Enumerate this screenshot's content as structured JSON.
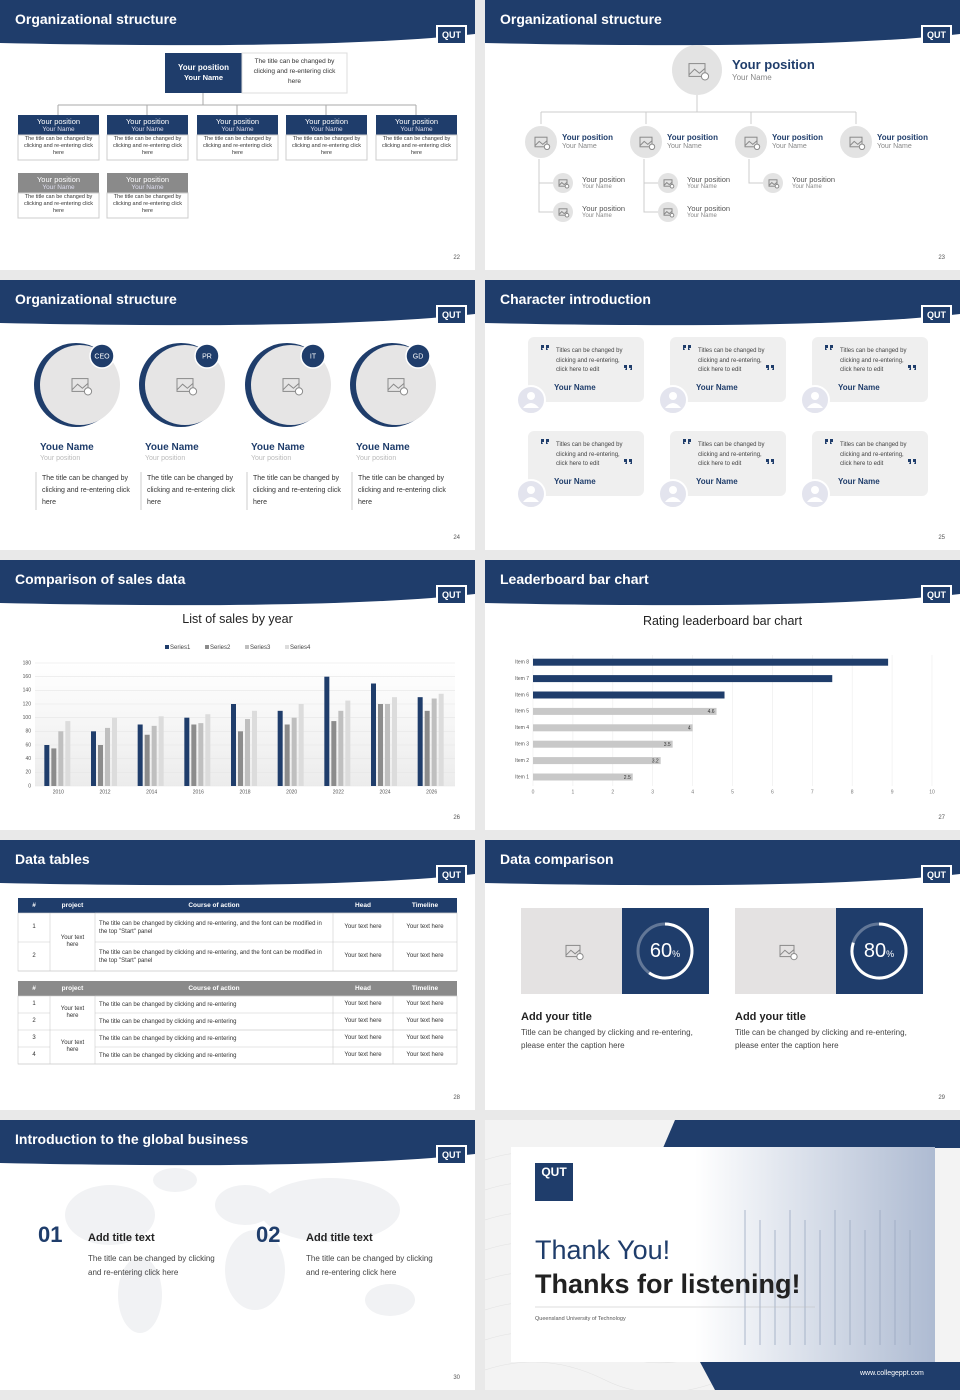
{
  "slides": [
    {
      "title": "Organizational structure",
      "logo": "QUT",
      "page": 22,
      "top": {
        "position": "Your position",
        "name": "Your Name",
        "note": "The title can be changed by clicking and re-entering click here"
      },
      "boxes": [
        {
          "position": "Your position",
          "name": "Your Name",
          "text": "The title can be changed by clicking and re-entering click here",
          "color": "#1f3d6b"
        },
        {
          "position": "Your position",
          "name": "Your Name",
          "text": "The title can be changed by clicking and re-entering click here",
          "color": "#1f3d6b"
        },
        {
          "position": "Your position",
          "name": "Your Name",
          "text": "The title can be changed by clicking and re-entering click here",
          "color": "#1f3d6b"
        },
        {
          "position": "Your position",
          "name": "Your Name",
          "text": "The title can be changed by clicking and re-entering click here",
          "color": "#1f3d6b"
        },
        {
          "position": "Your position",
          "name": "Your Name",
          "text": "The title can be changed by clicking and re-entering click here",
          "color": "#1f3d6b"
        },
        {
          "position": "Your position",
          "name": "Your Name",
          "text": "The title can be changed by clicking and re-entering click here",
          "color": "#8a8a8a"
        },
        {
          "position": "Your position",
          "name": "Your Name",
          "text": "The title can be changed by clicking and re-entering click here",
          "color": "#8a8a8a"
        }
      ]
    },
    {
      "title": "Organizational structure",
      "logo": "QUT",
      "page": 23,
      "top": {
        "position": "Your position",
        "name": "Your Name"
      },
      "members": [
        {
          "position": "Your position",
          "name": "Your Name"
        },
        {
          "position": "Your position",
          "name": "Your Name"
        },
        {
          "position": "Your position",
          "name": "Your Name"
        },
        {
          "position": "Your position",
          "name": "Your Name"
        }
      ],
      "subs": [
        {
          "position": "Your position",
          "name": "Your Name"
        },
        {
          "position": "Your position",
          "name": "Your Name"
        },
        {
          "position": "Your position",
          "name": "Your Name"
        },
        {
          "position": "Your position",
          "name": "Your Name"
        },
        {
          "position": "Your position",
          "name": "Your Name"
        }
      ]
    },
    {
      "title": "Organizational structure",
      "logo": "QUT",
      "page": 24,
      "people": [
        {
          "badge": "CEO",
          "name": "Youe Name",
          "position": "Your position",
          "text": "The title can be changed by clicking and re-entering click here"
        },
        {
          "badge": "PR",
          "name": "Youe Name",
          "position": "Your position",
          "text": "The title can be changed by clicking and re-entering click here"
        },
        {
          "badge": "IT",
          "name": "Youe Name",
          "position": "Your position",
          "text": "The title can be changed by clicking and re-entering click here"
        },
        {
          "badge": "GD",
          "name": "Youe Name",
          "position": "Your position",
          "text": "The title can be changed by clicking and re-entering click here"
        }
      ]
    },
    {
      "title": "Character introduction",
      "logo": "QUT",
      "page": 25,
      "cards": [
        {
          "quote": "Titles can be changed by clicking and re-entering, click here to edit",
          "name": "Your Name"
        },
        {
          "quote": "Titles can be changed by clicking and re-entering, click here to edit",
          "name": "Your Name"
        },
        {
          "quote": "Titles can be changed by clicking and re-entering, click here to edit",
          "name": "Your Name"
        },
        {
          "quote": "Titles can be changed by clicking and re-entering, click here to edit",
          "name": "Your Name"
        },
        {
          "quote": "Titles can be changed by clicking and re-entering, click here to edit",
          "name": "Your Name"
        },
        {
          "quote": "Titles can be changed by clicking and re-entering, click here to edit",
          "name": "Your Name"
        }
      ]
    },
    {
      "title": "Comparison of sales data",
      "logo": "QUT",
      "page": 26,
      "chart_data": {
        "type": "bar",
        "title": "List of sales by year",
        "categories": [
          "2010",
          "2012",
          "2014",
          "2016",
          "2018",
          "2020",
          "2022",
          "2024",
          "2026"
        ],
        "series": [
          {
            "name": "Series1",
            "color": "#1f3d6b",
            "values": [
              60,
              80,
              90,
              100,
              120,
              110,
              160,
              150,
              130
            ]
          },
          {
            "name": "Series2",
            "color": "#8c8c8c",
            "values": [
              55,
              60,
              75,
              90,
              80,
              90,
              95,
              120,
              110
            ]
          },
          {
            "name": "Series3",
            "color": "#bfbfbf",
            "values": [
              80,
              85,
              88,
              92,
              98,
              100,
              110,
              120,
              128
            ]
          },
          {
            "name": "Series4",
            "color": "#dcdcdc",
            "values": [
              95,
              100,
              102,
              105,
              110,
              120,
              125,
              130,
              135
            ]
          }
        ],
        "ylim": [
          0,
          180
        ],
        "yticks": [
          0,
          20,
          40,
          60,
          80,
          100,
          120,
          140,
          160,
          180
        ],
        "grid": true,
        "legend": "top"
      }
    },
    {
      "title": "Leaderboard bar chart",
      "logo": "QUT",
      "page": 27,
      "chart_data": {
        "type": "hbar",
        "title": "Rating leaderboard bar chart",
        "categories": [
          "Item 1",
          "Item 2",
          "Item 3",
          "Item 4",
          "Item 5",
          "Item 6",
          "Item 7",
          "Item 8"
        ],
        "values": [
          2.5,
          3.2,
          3.5,
          4,
          4.6,
          4.8,
          7.5,
          8.9
        ],
        "value_labels": [
          "2.5",
          "3.2",
          "3.5",
          "4",
          "4.6",
          null,
          null,
          null
        ],
        "colors": [
          "#c8c8c8",
          "#c8c8c8",
          "#c8c8c8",
          "#c8c8c8",
          "#c8c8c8",
          "#1f3d6b",
          "#1f3d6b",
          "#1f3d6b"
        ],
        "xlim": [
          0,
          10
        ],
        "xticks": [
          0,
          1,
          2,
          3,
          4,
          5,
          6,
          7,
          8,
          9,
          10
        ],
        "grid": true
      }
    },
    {
      "title": "Data tables",
      "logo": "QUT",
      "page": 28,
      "tables": [
        {
          "header_color": "#1f3d6b",
          "header": [
            "#",
            "project",
            "Course of action",
            "Head",
            "Timeline"
          ],
          "groups": [
            {
              "project": "Your text here",
              "rows": [
                {
                  "no": 1,
                  "action": "The title can be changed by clicking and re-entering, and the font can be modified in the top \"Start\" panel",
                  "head": "Your text here",
                  "timeline": "Your text here"
                },
                {
                  "no": 2,
                  "action": "The title can be changed by clicking and re-entering, and the font can be modified in the top \"Start\" panel",
                  "head": "Your text here",
                  "timeline": "Your text here"
                }
              ]
            }
          ]
        },
        {
          "header_color": "#8a8a8a",
          "header": [
            "#",
            "project",
            "Course of action",
            "Head",
            "Timeline"
          ],
          "groups": [
            {
              "project": "Your text here",
              "rows": [
                {
                  "no": 1,
                  "action": "The title can be changed by clicking and re-entering",
                  "head": "Your text here",
                  "timeline": "Your text here"
                },
                {
                  "no": 2,
                  "action": "The title can be changed by clicking and re-entering",
                  "head": "Your text here",
                  "timeline": "Your text here"
                }
              ]
            },
            {
              "project": "Your text here",
              "rows": [
                {
                  "no": 3,
                  "action": "The title can be changed by clicking and re-entering",
                  "head": "Your text here",
                  "timeline": "Your text here"
                },
                {
                  "no": 4,
                  "action": "The title can be changed by clicking and re-entering",
                  "head": "Your text here",
                  "timeline": "Your text here"
                }
              ]
            }
          ]
        }
      ]
    },
    {
      "title": "Data comparison",
      "logo": "QUT",
      "page": 29,
      "items": [
        {
          "value": 60,
          "unit": "%",
          "title": "Add your title",
          "text": "Title can be changed by clicking and re-entering, please enter the caption here"
        },
        {
          "value": 80,
          "unit": "%",
          "title": "Add your title",
          "text": "Title can be changed by clicking and re-entering, please enter the caption here"
        }
      ]
    },
    {
      "title": "Introduction to the global business",
      "logo": "QUT",
      "page": 30,
      "items": [
        {
          "number": "01",
          "title": "Add title text",
          "text": "The title can be changed by clicking and re-entering click here"
        },
        {
          "number": "02",
          "title": "Add title text",
          "text": "The title can be changed by clicking and re-entering click here"
        }
      ]
    },
    {
      "logo": "QUT",
      "title": "Thank You!",
      "subtitle": "Thanks for listening!",
      "university": "Queensland University of Technology",
      "website": "www.collegeppt.com"
    }
  ]
}
